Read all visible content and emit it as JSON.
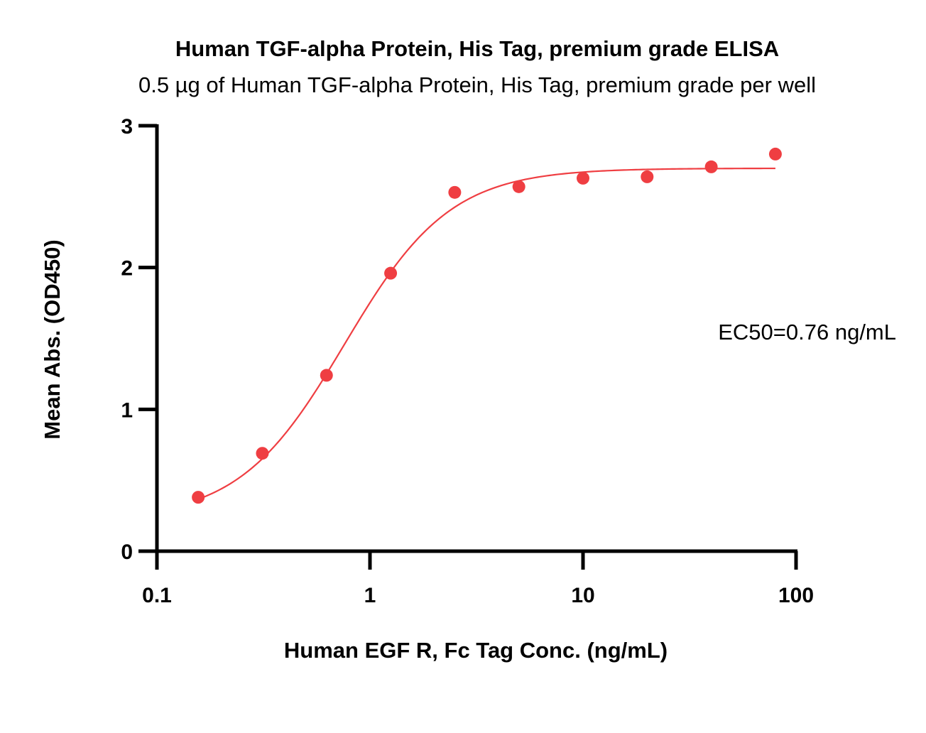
{
  "chart_data": {
    "type": "scatter",
    "title": "Human TGF-alpha Protein, His Tag, premium grade ELISA",
    "subtitle": "0.5 µg of Human TGF-alpha Protein, His Tag, premium grade per well",
    "xlabel": "Human EGF R, Fc Tag Conc. (ng/mL)",
    "ylabel": "Mean Abs. (OD450)",
    "x_scale": "log",
    "xlim": [
      0.1,
      100
    ],
    "ylim": [
      0,
      3
    ],
    "x_ticks": [
      0.1,
      1,
      10,
      100
    ],
    "x_tick_labels": [
      "0.1",
      "1",
      "10",
      "100"
    ],
    "y_ticks": [
      0,
      1,
      2,
      3
    ],
    "y_tick_labels": [
      "0",
      "1",
      "2",
      "3"
    ],
    "grid": false,
    "series": [
      {
        "color": "#ef3e42",
        "x": [
          0.15625,
          0.3125,
          0.625,
          1.25,
          2.5,
          5,
          10,
          20,
          40,
          80
        ],
        "y": [
          0.38,
          0.69,
          1.24,
          1.96,
          2.53,
          2.57,
          2.63,
          2.64,
          2.71,
          2.8
        ]
      }
    ],
    "fit": {
      "model": "4PL",
      "color": "#ef3e42",
      "bottom": 0.22,
      "top": 2.7,
      "ec50": 0.76,
      "hill": 1.75
    },
    "annotations": [
      {
        "text": "EC50=0.76 ng/mL"
      }
    ]
  }
}
